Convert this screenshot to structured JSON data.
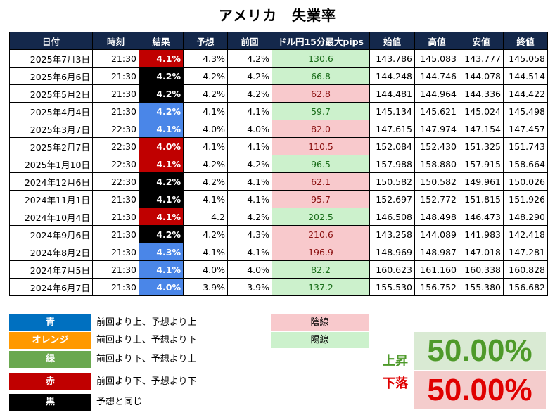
{
  "title": "アメリカ　失業率",
  "table": {
    "headers": [
      "日付",
      "時刻",
      "結果",
      "予想",
      "前回",
      "ドル円15分最大pips",
      "始値",
      "高値",
      "安値",
      "終値"
    ],
    "rows": [
      {
        "date": "2025年7月3日",
        "time": "21:30",
        "result": "4.1%",
        "result_color": "red",
        "forecast": "4.3%",
        "previous": "4.2%",
        "pips": "130.6",
        "pips_type": "up",
        "open": "143.786",
        "high": "145.083",
        "low": "143.777",
        "close": "145.058"
      },
      {
        "date": "2025年6月6日",
        "time": "21:30",
        "result": "4.2%",
        "result_color": "black",
        "forecast": "4.2%",
        "previous": "4.2%",
        "pips": "66.8",
        "pips_type": "up",
        "open": "144.248",
        "high": "144.746",
        "low": "144.078",
        "close": "144.514"
      },
      {
        "date": "2025年5月2日",
        "time": "21:30",
        "result": "4.2%",
        "result_color": "black",
        "forecast": "4.2%",
        "previous": "4.2%",
        "pips": "62.8",
        "pips_type": "down",
        "open": "144.481",
        "high": "144.964",
        "low": "144.336",
        "close": "144.422"
      },
      {
        "date": "2025年4月4日",
        "time": "21:30",
        "result": "4.2%",
        "result_color": "blue",
        "forecast": "4.1%",
        "previous": "4.1%",
        "pips": "59.7",
        "pips_type": "up",
        "open": "145.134",
        "high": "145.621",
        "low": "145.024",
        "close": "145.498"
      },
      {
        "date": "2025年3月7日",
        "time": "22:30",
        "result": "4.1%",
        "result_color": "blue",
        "forecast": "4.0%",
        "previous": "4.0%",
        "pips": "82.0",
        "pips_type": "down",
        "open": "147.615",
        "high": "147.974",
        "low": "147.154",
        "close": "147.457"
      },
      {
        "date": "2025年2月7日",
        "time": "22:30",
        "result": "4.0%",
        "result_color": "red",
        "forecast": "4.1%",
        "previous": "4.1%",
        "pips": "110.5",
        "pips_type": "down",
        "open": "152.084",
        "high": "152.430",
        "low": "151.325",
        "close": "151.743"
      },
      {
        "date": "2025年1月10日",
        "time": "22:30",
        "result": "4.1%",
        "result_color": "red",
        "forecast": "4.2%",
        "previous": "4.2%",
        "pips": "96.5",
        "pips_type": "up",
        "open": "157.988",
        "high": "158.880",
        "low": "157.915",
        "close": "158.664"
      },
      {
        "date": "2024年12月6日",
        "time": "22:30",
        "result": "4.2%",
        "result_color": "black",
        "forecast": "4.2%",
        "previous": "4.1%",
        "pips": "62.1",
        "pips_type": "down",
        "open": "150.582",
        "high": "150.582",
        "low": "149.961",
        "close": "150.026"
      },
      {
        "date": "2024年11月1日",
        "time": "21:30",
        "result": "4.1%",
        "result_color": "black",
        "forecast": "4.1%",
        "previous": "4.1%",
        "pips": "95.7",
        "pips_type": "down",
        "open": "152.697",
        "high": "152.772",
        "low": "151.815",
        "close": "151.926"
      },
      {
        "date": "2024年10月4日",
        "time": "21:30",
        "result": "4.1%",
        "result_color": "red",
        "forecast": "4.2",
        "previous": "4.2%",
        "pips": "202.5",
        "pips_type": "up",
        "open": "146.508",
        "high": "148.498",
        "low": "146.473",
        "close": "148.290"
      },
      {
        "date": "2024年9月6日",
        "time": "21:30",
        "result": "4.2%",
        "result_color": "black",
        "forecast": "4.2%",
        "previous": "4.3%",
        "pips": "210.6",
        "pips_type": "down",
        "open": "143.258",
        "high": "144.089",
        "low": "141.983",
        "close": "142.418"
      },
      {
        "date": "2024年8月2日",
        "time": "21:30",
        "result": "4.3%",
        "result_color": "blue",
        "forecast": "4.1%",
        "previous": "4.1%",
        "pips": "196.9",
        "pips_type": "down",
        "open": "148.969",
        "high": "148.987",
        "low": "147.018",
        "close": "147.281"
      },
      {
        "date": "2024年7月5日",
        "time": "21:30",
        "result": "4.1%",
        "result_color": "blue",
        "forecast": "4.0%",
        "previous": "4.0%",
        "pips": "82.2",
        "pips_type": "up",
        "open": "160.623",
        "high": "161.160",
        "low": "160.338",
        "close": "160.828"
      },
      {
        "date": "2024年6月7日",
        "time": "21:30",
        "result": "4.0%",
        "result_color": "blue",
        "forecast": "3.9%",
        "previous": "3.9%",
        "pips": "137.2",
        "pips_type": "up",
        "open": "155.530",
        "high": "156.752",
        "low": "155.380",
        "close": "156.682"
      }
    ]
  },
  "legend": [
    {
      "name": "青",
      "desc": "前回より上、予想より上",
      "color": "#0070c0"
    },
    {
      "name": "オレンジ",
      "desc": "前回より上、予想より下",
      "color": "#ff9900"
    },
    {
      "name": "緑",
      "desc": "前回より下、予想より上",
      "color": "#6aa84f"
    },
    {
      "name": "赤",
      "desc": "前回より下、予想より下",
      "color": "#c00000"
    },
    {
      "name": "黒",
      "desc": "予想と同じ",
      "color": "#000000"
    }
  ],
  "candle_legend": {
    "down": "陰線",
    "up": "陽線",
    "down_color": "#f8c9cc",
    "up_color": "#ccf1cc"
  },
  "stats": {
    "up_label": "上昇",
    "up_value": "50.00%",
    "up_color": "#4e9a2a",
    "up_bg": "#d9ead3",
    "down_label": "下落",
    "down_value": "50.00%",
    "down_color": "#e00000",
    "down_bg": "#f4cccc"
  }
}
